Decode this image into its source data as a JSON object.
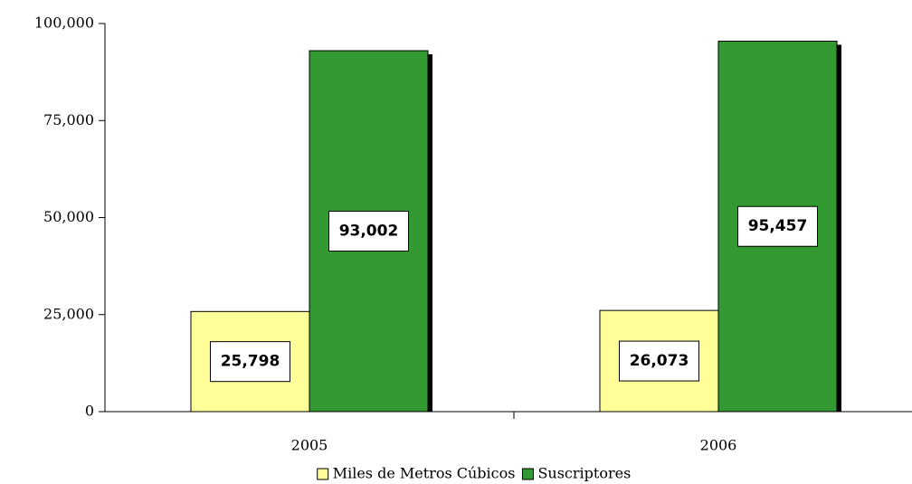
{
  "chart_data": {
    "type": "bar",
    "categories": [
      "2005",
      "2006"
    ],
    "series": [
      {
        "name": "Miles de Metros Cúbicos",
        "color": "#ffff99",
        "values": [
          25798,
          26073
        ],
        "value_labels": [
          "25,798",
          "26,073"
        ]
      },
      {
        "name": "Suscriptores",
        "color": "#339933",
        "values": [
          93002,
          95457
        ],
        "value_labels": [
          "93,002",
          "95,457"
        ]
      }
    ],
    "ylim": [
      0,
      100000
    ],
    "yticks": [
      0,
      {
        "value": 25000,
        "label": "25,000"
      },
      {
        "value": 50000,
        "label": "50,000"
      },
      {
        "value": 75000,
        "label": "75,000"
      },
      {
        "value": 100000,
        "label": "100,000"
      }
    ],
    "legend": "bottom"
  }
}
